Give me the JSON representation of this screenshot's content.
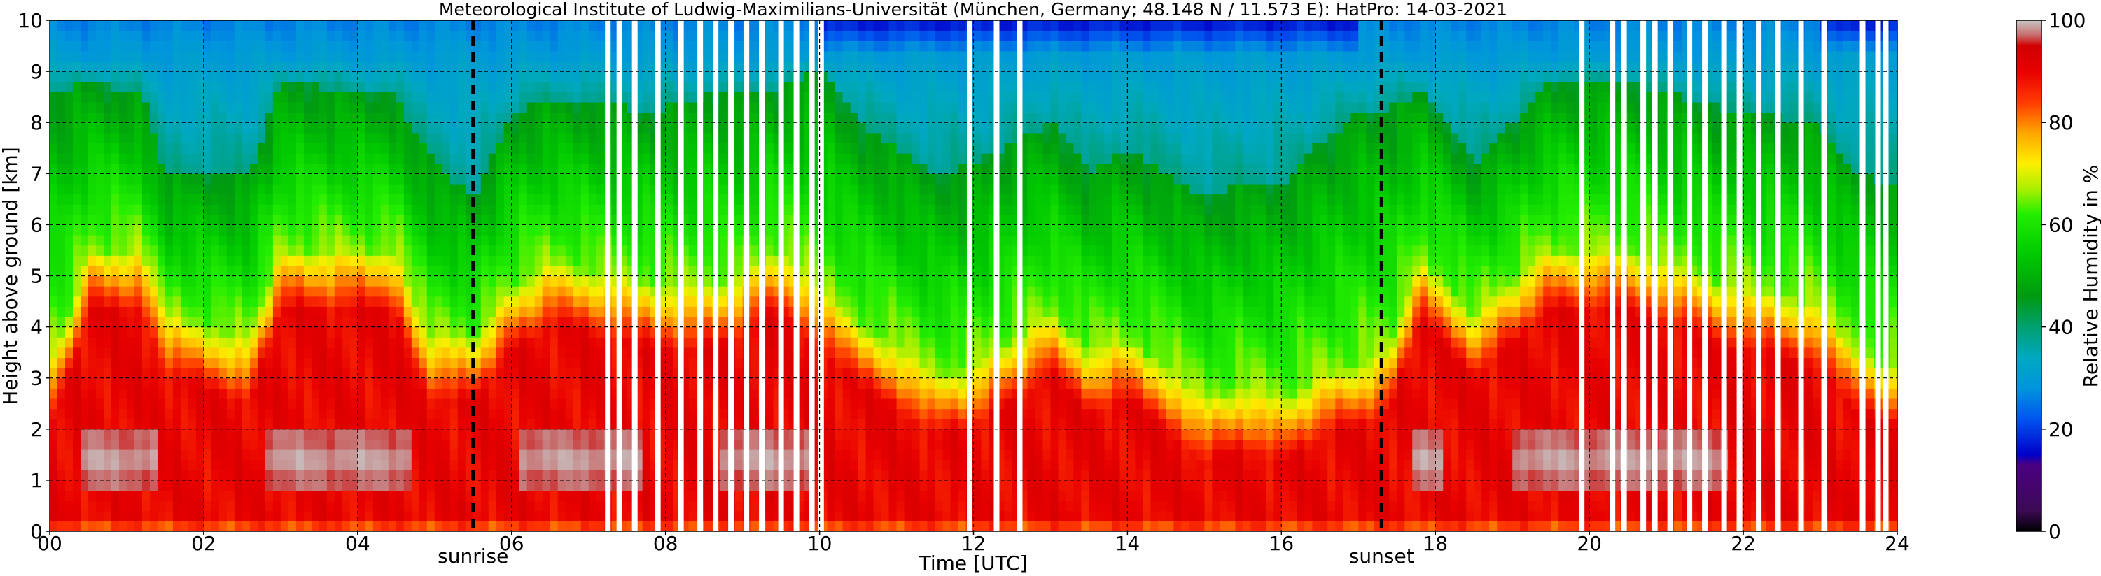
{
  "chart_data": {
    "type": "heatmap",
    "title": "Meteorological Institute of Ludwig-Maximilians-Universität (München, Germany; 48.148 N / 11.573 E):    HatPro: 14-03-2021",
    "xlabel": "Time [UTC]",
    "ylabel": "Height above ground [km]",
    "xlim": [
      0,
      24
    ],
    "ylim": [
      0,
      10
    ],
    "x_ticks": [
      0,
      2,
      4,
      6,
      8,
      10,
      12,
      14,
      16,
      18,
      20,
      22,
      24
    ],
    "x_tick_labels": [
      "00",
      "02",
      "04",
      "06",
      "08",
      "10",
      "12",
      "14",
      "16",
      "18",
      "20",
      "22",
      "24"
    ],
    "y_ticks": [
      0,
      1,
      2,
      3,
      4,
      5,
      6,
      7,
      8,
      9,
      10
    ],
    "y_tick_labels": [
      "0",
      "1",
      "2",
      "3",
      "4",
      "5",
      "6",
      "7",
      "8",
      "9",
      "10"
    ],
    "grid": true,
    "colorbar": {
      "label": "Relative Humidity in %",
      "range": [
        0,
        100
      ],
      "ticks": [
        0,
        20,
        40,
        60,
        80,
        100
      ],
      "tick_labels": [
        "0",
        "20",
        "40",
        "60",
        "80",
        "100"
      ],
      "colors": [
        {
          "value": 0,
          "color": "#000000"
        },
        {
          "value": 4,
          "color": "#3b0a55"
        },
        {
          "value": 13,
          "color": "#4b0082"
        },
        {
          "value": 15,
          "color": "#0000c8"
        },
        {
          "value": 22,
          "color": "#0055ee"
        },
        {
          "value": 28,
          "color": "#0095dd"
        },
        {
          "value": 34,
          "color": "#00a8c0"
        },
        {
          "value": 40,
          "color": "#00a070"
        },
        {
          "value": 46,
          "color": "#009a10"
        },
        {
          "value": 54,
          "color": "#00c800"
        },
        {
          "value": 62,
          "color": "#22ee00"
        },
        {
          "value": 67,
          "color": "#aaf000"
        },
        {
          "value": 72,
          "color": "#ffee00"
        },
        {
          "value": 78,
          "color": "#ffa500"
        },
        {
          "value": 84,
          "color": "#ff3a00"
        },
        {
          "value": 90,
          "color": "#e80000"
        },
        {
          "value": 95,
          "color": "#d00000"
        },
        {
          "value": 97,
          "color": "#c86868"
        },
        {
          "value": 100,
          "color": "#c8c8c8"
        }
      ]
    },
    "events": [
      {
        "label": "sunrise",
        "time": 5.5
      },
      {
        "label": "sunset",
        "time": 17.3
      }
    ],
    "missing_data_times": [
      7.25,
      7.4,
      7.6,
      7.9,
      8.2,
      8.45,
      8.65,
      8.85,
      9.05,
      9.25,
      9.5,
      9.7,
      9.9,
      10.02,
      11.95,
      12.3,
      12.6,
      19.9,
      20.3,
      20.45,
      20.7,
      20.85,
      21.05,
      21.3,
      21.5,
      21.75,
      21.95,
      22.2,
      22.45,
      22.75,
      23.05,
      23.55,
      23.75,
      23.85
    ],
    "rh_time_series": {
      "x": [
        0,
        0.3,
        0.5,
        1.2,
        1.5,
        2.6,
        3.0,
        4.5,
        4.9,
        5.5,
        6.0,
        6.5,
        7.2,
        7.7,
        8.5,
        9.0,
        9.5,
        10.0,
        10.5,
        11.0,
        11.5,
        12.0,
        12.5,
        13.0,
        13.5,
        14.0,
        14.5,
        15.0,
        15.5,
        16.0,
        16.5,
        17.0,
        17.4,
        17.8,
        18.5,
        19.5,
        20.5,
        21.0,
        22.0,
        23.0,
        23.5,
        24.0
      ],
      "top_of_red_layer_km": [
        2.0,
        3.2,
        4.3,
        4.3,
        3.0,
        2.5,
        4.3,
        4.3,
        2.6,
        2.5,
        3.5,
        4.0,
        3.8,
        3.6,
        3.5,
        3.8,
        4.3,
        3.5,
        2.8,
        2.4,
        1.8,
        2.0,
        2.5,
        3.0,
        2.3,
        2.5,
        2.0,
        1.3,
        1.6,
        1.3,
        1.8,
        2.0,
        2.3,
        4.1,
        3.0,
        4.3,
        4.3,
        4.0,
        3.5,
        3.2,
        2.2,
        2.0
      ],
      "top_of_moist_green_layer_km": [
        8.5,
        8.7,
        8.8,
        8.6,
        7.0,
        7.0,
        8.8,
        8.5,
        7.4,
        6.5,
        8.2,
        8.5,
        8.4,
        8.2,
        8.5,
        8.6,
        8.7,
        9.0,
        8.0,
        7.5,
        7.0,
        7.2,
        7.6,
        8.0,
        7.0,
        7.5,
        7.0,
        6.5,
        6.8,
        6.8,
        7.6,
        8.2,
        8.3,
        8.6,
        7.2,
        8.8,
        8.8,
        8.6,
        8.2,
        8.0,
        7.0,
        6.8
      ]
    }
  }
}
